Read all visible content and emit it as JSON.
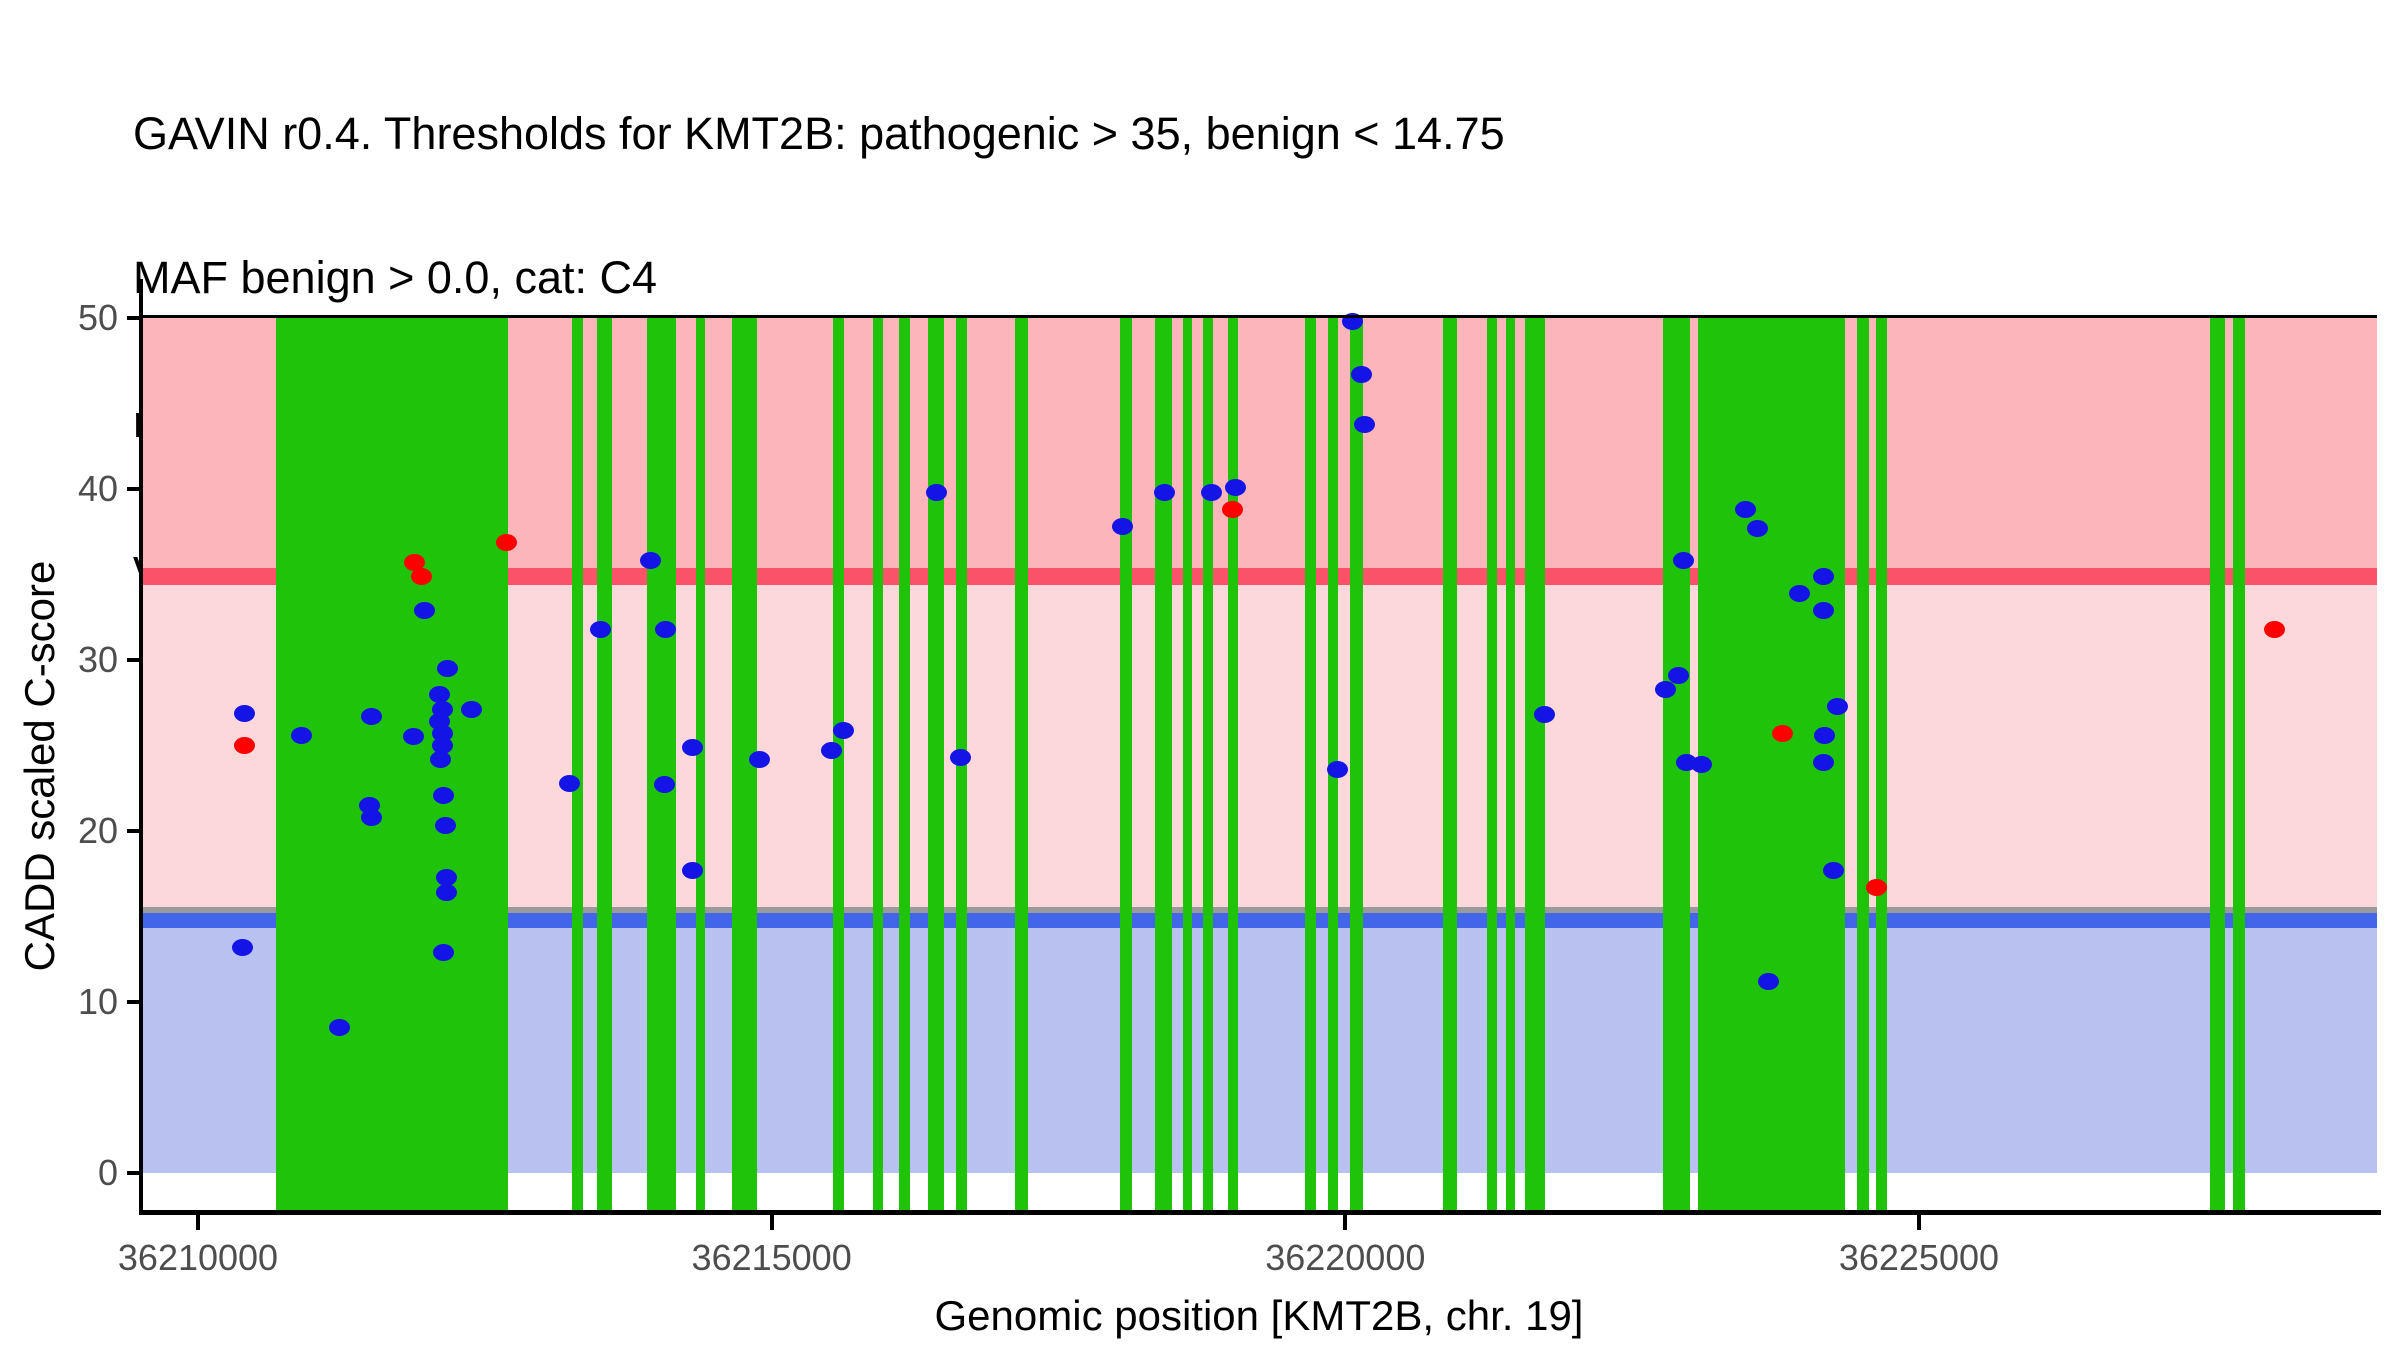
{
  "title_lines": [
    "GAVIN r0.4. Thresholds for KMT2B: pathogenic > 35, benign < 14.75",
    "MAF benign > 0.0, cat: C4",
    "red: ClinVar pathogenic variants, blue: rarity & impact matched gnomAD",
    "variants, green: RefSeq exons, grey: genome-wide fallback threshold"
  ],
  "chart_data": {
    "type": "scatter",
    "title": "GAVIN r0.4. Thresholds for KMT2B: pathogenic > 35, benign < 14.75 MAF benign > 0.0, cat: C4",
    "xlabel": "Genomic position [KMT2B, chr. 19]",
    "ylabel": "CADD scaled C-score",
    "xlim": [
      36209500,
      36229000
    ],
    "ylim": [
      0,
      50
    ],
    "grid": "off",
    "x_ticks": [
      36210000,
      36215000,
      36220000,
      36225000
    ],
    "x_tick_labels": [
      "36210000",
      "36215000",
      "36220000",
      "36225000"
    ],
    "y_ticks": [
      0,
      10,
      20,
      30,
      40,
      50
    ],
    "y_tick_labels": [
      "0",
      "10",
      "20",
      "30",
      "40",
      "50"
    ],
    "thresholds": {
      "pathogenic_gt": 35,
      "benign_lt": 14.75,
      "genome_wide_fallback": 15,
      "maf_benign_gt": 0.0,
      "category": "C4"
    },
    "regions": [
      {
        "name": "pathogenic-zone",
        "from": 35,
        "to": 50,
        "color": "#fcb5bb"
      },
      {
        "name": "vus-zone",
        "from": 14.75,
        "to": 35,
        "color": "#fdd8db"
      },
      {
        "name": "benign-zone",
        "from": 0,
        "to": 14.75,
        "color": "#b9c1f1"
      }
    ],
    "threshold_lines": [
      {
        "name": "pathogenic-threshold",
        "value": 35,
        "color": "#fa5268"
      },
      {
        "name": "fallback-threshold",
        "value": 15,
        "color": "#9a9a9a"
      },
      {
        "name": "benign-threshold",
        "value": 14.75,
        "color": "#4365e9"
      }
    ],
    "exons_label": "RefSeq exons",
    "exon_color": "#1fc30a",
    "exons": [
      [
        36210680,
        36212702
      ],
      [
        36213260,
        36213356
      ],
      [
        36213478,
        36213609
      ],
      [
        36213914,
        36214166
      ],
      [
        36214341,
        36214419
      ],
      [
        36214654,
        36214872
      ],
      [
        36215535,
        36215631
      ],
      [
        36215884,
        36215971
      ],
      [
        36216110,
        36216206
      ],
      [
        36216363,
        36216502
      ],
      [
        36216607,
        36216703
      ],
      [
        36217121,
        36217234
      ],
      [
        36218036,
        36218141
      ],
      [
        36218341,
        36218489
      ],
      [
        36218585,
        36218663
      ],
      [
        36218759,
        36218846
      ],
      [
        36218977,
        36219064
      ],
      [
        36219648,
        36219744
      ],
      [
        36219849,
        36219936
      ],
      [
        36220041,
        36220154
      ],
      [
        36220851,
        36220973
      ],
      [
        36221235,
        36221322
      ],
      [
        36221400,
        36221479
      ],
      [
        36221566,
        36221740
      ],
      [
        36222769,
        36223004
      ],
      [
        36223074,
        36224355
      ],
      [
        36224460,
        36224564
      ],
      [
        36224625,
        36224721
      ],
      [
        36227537,
        36227668
      ],
      [
        36227738,
        36227842
      ]
    ],
    "series": [
      {
        "name": "ClinVar pathogenic variants",
        "color": "#ff0000",
        "points": [
          [
            36210401,
            25.0
          ],
          [
            36211883,
            35.7
          ],
          [
            36211944,
            34.9
          ],
          [
            36212685,
            36.9
          ],
          [
            36219021,
            38.8
          ],
          [
            36223815,
            25.7
          ],
          [
            36224626,
            16.7
          ],
          [
            36228103,
            31.8
          ]
        ]
      },
      {
        "name": "rarity & impact matched gnomAD variants",
        "color": "#1414e6",
        "points": [
          [
            36210401,
            26.9
          ],
          [
            36210384,
            13.2
          ],
          [
            36210898,
            25.6
          ],
          [
            36211229,
            8.5
          ],
          [
            36211508,
            26.7
          ],
          [
            36211499,
            21.5
          ],
          [
            36211508,
            20.8
          ],
          [
            36211970,
            32.9
          ],
          [
            36212179,
            29.5
          ],
          [
            36212109,
            28.0
          ],
          [
            36212127,
            27.1
          ],
          [
            36212388,
            27.1
          ],
          [
            36212109,
            26.4
          ],
          [
            36211874,
            25.5
          ],
          [
            36212127,
            25.7
          ],
          [
            36212127,
            25.0
          ],
          [
            36212118,
            24.2
          ],
          [
            36212136,
            22.1
          ],
          [
            36212153,
            20.3
          ],
          [
            36212170,
            17.3
          ],
          [
            36212170,
            16.4
          ],
          [
            36212136,
            12.9
          ],
          [
            36213242,
            22.8
          ],
          [
            36213504,
            31.8
          ],
          [
            36213940,
            35.8
          ],
          [
            36214079,
            31.8
          ],
          [
            36214070,
            22.7
          ],
          [
            36214310,
            24.9
          ],
          [
            36214310,
            17.7
          ],
          [
            36214898,
            24.2
          ],
          [
            36215526,
            24.7
          ],
          [
            36215622,
            25.9
          ],
          [
            36216441,
            39.8
          ],
          [
            36216642,
            24.3
          ],
          [
            36218062,
            37.8
          ],
          [
            36218420,
            39.8
          ],
          [
            36218838,
            39.8
          ],
          [
            36219039,
            40.1
          ],
          [
            36219928,
            23.6
          ],
          [
            36220067,
            49.8
          ],
          [
            36220145,
            46.7
          ],
          [
            36220163,
            43.8
          ],
          [
            36221732,
            26.8
          ],
          [
            36222787,
            28.3
          ],
          [
            36222900,
            29.1
          ],
          [
            36222944,
            35.8
          ],
          [
            36222978,
            24.0
          ],
          [
            36223109,
            23.9
          ],
          [
            36223484,
            38.8
          ],
          [
            36223597,
            37.7
          ],
          [
            36223693,
            11.2
          ],
          [
            36223955,
            33.9
          ],
          [
            36224164,
            34.9
          ],
          [
            36224164,
            32.9
          ],
          [
            36224181,
            25.6
          ],
          [
            36224164,
            24.0
          ],
          [
            36224259,
            17.7
          ],
          [
            36224286,
            27.3
          ]
        ]
      }
    ],
    "legend_position": "none (legend described in title text)"
  }
}
